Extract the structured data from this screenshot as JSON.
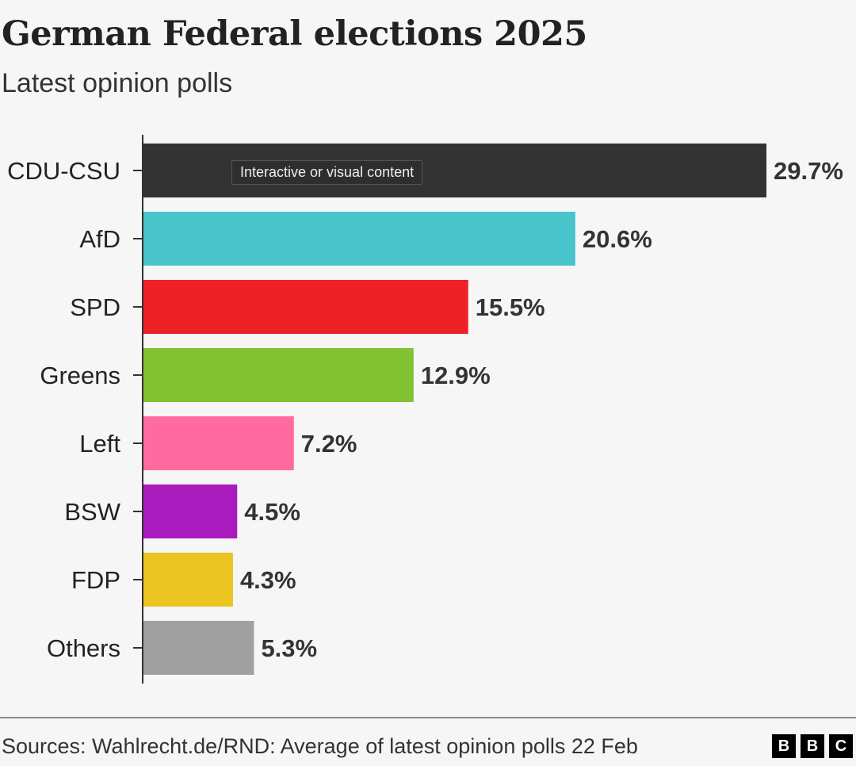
{
  "chart_data": {
    "type": "bar",
    "orientation": "horizontal",
    "title": "German Federal elections 2025",
    "subtitle": "Latest opinion polls",
    "categories": [
      "CDU-CSU",
      "AfD",
      "SPD",
      "Greens",
      "Left",
      "BSW",
      "FDP",
      "Others"
    ],
    "values": [
      29.7,
      20.6,
      15.5,
      12.9,
      7.2,
      4.5,
      4.3,
      5.3
    ],
    "data_labels": [
      "29.7%",
      "20.6%",
      "15.5%",
      "12.9%",
      "7.2%",
      "4.5%",
      "4.3%",
      "5.3%"
    ],
    "colors": [
      "#333333",
      "#4ac4cb",
      "#ee2028",
      "#82c232",
      "#ff6b9f",
      "#aa1bbd",
      "#eac521",
      "#a0a0a0"
    ],
    "unit": "%",
    "xlim": [
      0,
      30
    ],
    "grid": false,
    "source": "Sources: Wahlrecht.de/RND: Average of latest opinion polls 22 Feb"
  },
  "tooltip": "Interactive or visual content",
  "logo": [
    "B",
    "B",
    "C"
  ]
}
